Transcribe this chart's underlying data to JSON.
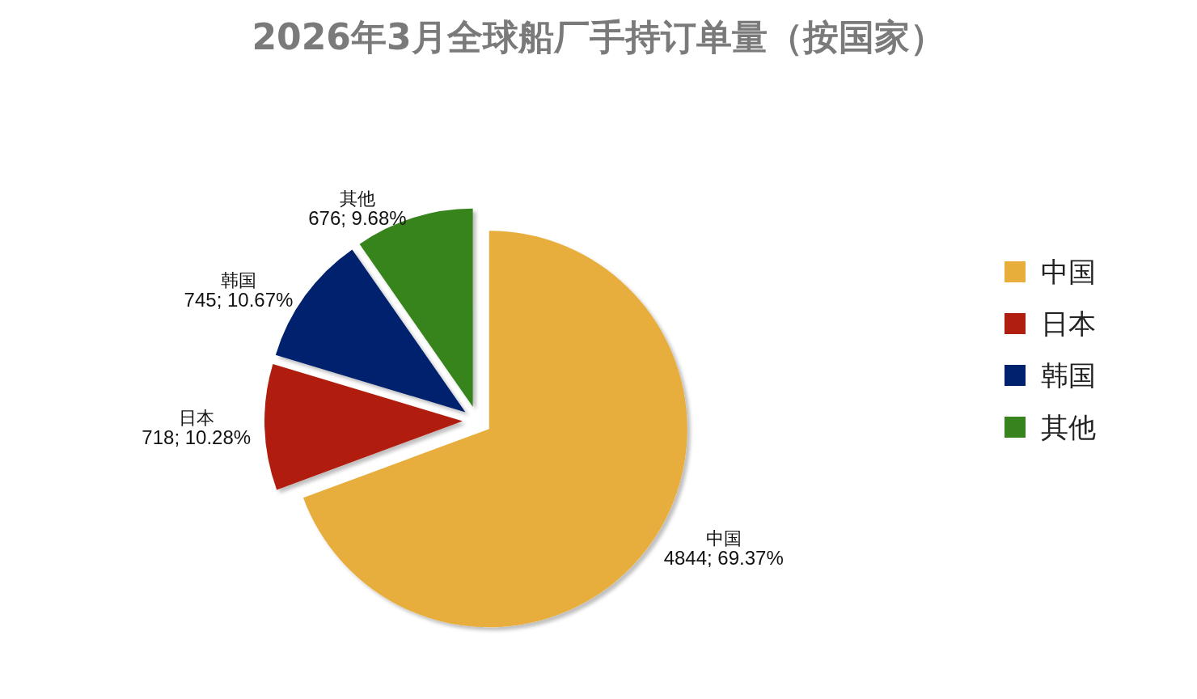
{
  "chart_data": {
    "type": "pie",
    "title": "2026年3月全球船厂手持订单量（按国家）",
    "categories": [
      "中国",
      "日本",
      "韩国",
      "其他"
    ],
    "values": [
      4844,
      718,
      745,
      676
    ],
    "colors": [
      "#e8ae3c",
      "#b01e10",
      "#00216e",
      "#37841f"
    ],
    "value_labels": [
      "4844; 69.37%",
      "718; 10.28%",
      "745; 10.67%",
      "676; 9.68%"
    ],
    "legend": "right"
  }
}
